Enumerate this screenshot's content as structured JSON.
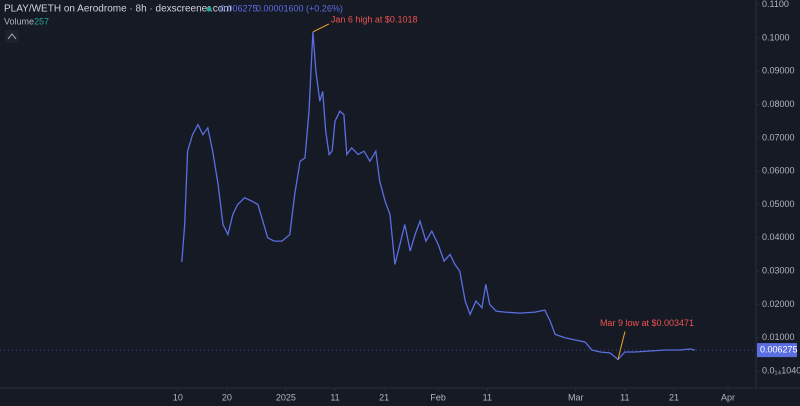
{
  "chart_data": {
    "type": "line",
    "title": "PLAY/WETH on Aerodrome · 8h · dexscreener.com",
    "header_price": "0.006275",
    "header_change": "0.00001600 (+0.26%)",
    "volume_label": "Volume",
    "volume_value": "257",
    "current_price": 0.006275,
    "series": [
      {
        "name": "PLAY/WETH",
        "color": "#5b6ee1",
        "x": [
          -21.2,
          -20.6,
          -20,
          -19,
          -17.9,
          -16.9,
          -15.9,
          -14.9,
          -13.8,
          -12.8,
          -11.8,
          -10.8,
          -9.8,
          -8.4,
          -6.9,
          -5.7,
          -4.7,
          -3.7,
          -2.4,
          -0.8,
          0.8,
          1.8,
          2.9,
          3.9,
          4.7,
          5.5,
          6.1,
          6.9,
          7.5,
          8.1,
          8.8,
          9.4,
          10,
          11,
          11.8,
          12.4,
          13.4,
          14.7,
          15.9,
          17.1,
          18.3,
          19.1,
          20.2,
          21.2,
          22.2,
          23.2,
          24.2,
          25.3,
          26.3,
          27.3,
          28.5,
          29.7,
          31,
          32.2,
          33.4,
          34.4,
          35.4,
          36.5,
          37.5,
          38.7,
          39.9,
          40.7,
          41.5,
          42.8,
          44.6,
          47.7,
          50.7,
          52.7,
          53.8,
          54.8,
          56.8,
          58.9,
          60.9,
          62.3,
          64,
          66,
          67.6,
          69,
          71,
          74.1,
          77.2,
          80.2,
          82.3,
          83.3
        ],
        "values": [
          0.0327,
          0.044,
          0.066,
          0.071,
          0.074,
          0.071,
          0.073,
          0.066,
          0.056,
          0.044,
          0.041,
          0.047,
          0.05,
          0.052,
          0.051,
          0.05,
          0.045,
          0.04,
          0.039,
          0.039,
          0.041,
          0.053,
          0.063,
          0.064,
          0.078,
          0.1018,
          0.09,
          0.081,
          0.084,
          0.072,
          0.065,
          0.066,
          0.075,
          0.078,
          0.077,
          0.065,
          0.067,
          0.065,
          0.066,
          0.063,
          0.066,
          0.057,
          0.051,
          0.047,
          0.032,
          0.038,
          0.044,
          0.036,
          0.041,
          0.045,
          0.039,
          0.042,
          0.038,
          0.033,
          0.035,
          0.032,
          0.03,
          0.021,
          0.017,
          0.021,
          0.019,
          0.026,
          0.02,
          0.018,
          0.0177,
          0.0174,
          0.0177,
          0.0183,
          0.015,
          0.011,
          0.01,
          0.0093,
          0.0087,
          0.0063,
          0.0057,
          0.0054,
          0.003471,
          0.0057,
          0.0057,
          0.006,
          0.0063,
          0.0063,
          0.0066,
          0.006275
        ]
      }
    ],
    "annotations": [
      "Jan 6 high at $0.1018",
      "Mar 9 low at $0.003471"
    ],
    "xlim": [
      -58.2,
      95.5
    ],
    "xticks": [
      {
        "value": -22,
        "label": "10"
      },
      {
        "value": -12,
        "label": "20"
      },
      {
        "value": 0,
        "label": "2025"
      },
      {
        "value": 10,
        "label": "11"
      },
      {
        "value": 20,
        "label": "21"
      },
      {
        "value": 31,
        "label": "Feb"
      },
      {
        "value": 41,
        "label": "11"
      },
      {
        "value": 59,
        "label": "Mar"
      },
      {
        "value": 69,
        "label": "11"
      },
      {
        "value": 79,
        "label": "21"
      },
      {
        "value": 90,
        "label": "Apr"
      }
    ],
    "ylim": [
      -0.0051,
      0.1114
    ],
    "yticks": [
      {
        "value": 0.11,
        "label": "0.1100"
      },
      {
        "value": 0.1,
        "label": "0.1000"
      },
      {
        "value": 0.09,
        "label": "0.09000"
      },
      {
        "value": 0.08,
        "label": "0.08000"
      },
      {
        "value": 0.07,
        "label": "0.07000"
      },
      {
        "value": 0.06,
        "label": "0.06000"
      },
      {
        "value": 0.05,
        "label": "0.05000"
      },
      {
        "value": 0.04,
        "label": "0.04000"
      },
      {
        "value": 0.03,
        "label": "0.03000"
      },
      {
        "value": 0.02,
        "label": "0.02000"
      },
      {
        "value": 0.01,
        "label": "0.01000"
      },
      {
        "value": 1.04e-14,
        "label": "0.0₁₄1040"
      }
    ]
  }
}
